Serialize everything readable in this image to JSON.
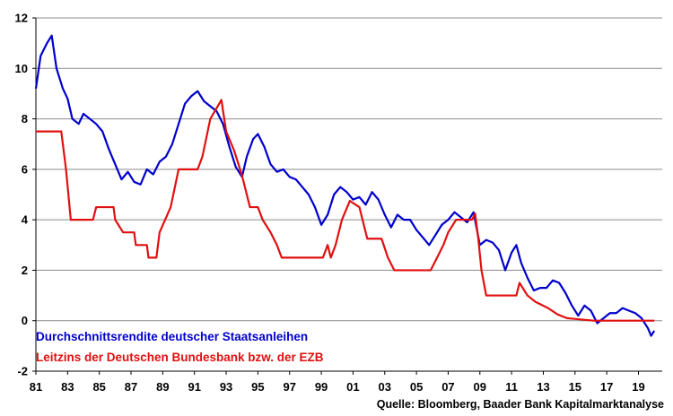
{
  "chart_data": {
    "type": "line",
    "title": "",
    "xlabel": "",
    "ylabel": "",
    "xlim": [
      1981,
      2020.5
    ],
    "ylim": [
      -2,
      12
    ],
    "grid": true,
    "x_ticks": [
      "81",
      "83",
      "85",
      "87",
      "89",
      "91",
      "93",
      "95",
      "97",
      "99",
      "01",
      "03",
      "05",
      "07",
      "09",
      "11",
      "13",
      "15",
      "17",
      "19"
    ],
    "y_ticks": [
      "-2",
      "0",
      "2",
      "4",
      "6",
      "8",
      "10",
      "12"
    ],
    "legend_position": "bottom-left",
    "series": [
      {
        "name": "Durchschnittsrendite deutscher Staatsanleihen",
        "color": "#0000cc",
        "points": [
          [
            1981.0,
            9.2
          ],
          [
            1981.3,
            10.5
          ],
          [
            1981.7,
            11.0
          ],
          [
            1982.0,
            11.3
          ],
          [
            1982.3,
            10.0
          ],
          [
            1982.7,
            9.2
          ],
          [
            1983.0,
            8.8
          ],
          [
            1983.3,
            8.0
          ],
          [
            1983.7,
            7.8
          ],
          [
            1984.0,
            8.2
          ],
          [
            1984.4,
            8.0
          ],
          [
            1984.8,
            7.8
          ],
          [
            1985.2,
            7.5
          ],
          [
            1985.6,
            6.8
          ],
          [
            1986.0,
            6.2
          ],
          [
            1986.4,
            5.6
          ],
          [
            1986.8,
            5.9
          ],
          [
            1987.2,
            5.5
          ],
          [
            1987.6,
            5.4
          ],
          [
            1988.0,
            6.0
          ],
          [
            1988.4,
            5.8
          ],
          [
            1988.8,
            6.3
          ],
          [
            1989.2,
            6.5
          ],
          [
            1989.6,
            7.0
          ],
          [
            1990.0,
            7.8
          ],
          [
            1990.4,
            8.6
          ],
          [
            1990.8,
            8.9
          ],
          [
            1991.2,
            9.1
          ],
          [
            1991.6,
            8.7
          ],
          [
            1992.0,
            8.5
          ],
          [
            1992.4,
            8.3
          ],
          [
            1992.8,
            7.8
          ],
          [
            1993.2,
            6.9
          ],
          [
            1993.6,
            6.1
          ],
          [
            1994.0,
            5.7
          ],
          [
            1994.3,
            6.5
          ],
          [
            1994.7,
            7.2
          ],
          [
            1995.0,
            7.4
          ],
          [
            1995.4,
            6.9
          ],
          [
            1995.8,
            6.2
          ],
          [
            1996.2,
            5.9
          ],
          [
            1996.6,
            6.0
          ],
          [
            1997.0,
            5.7
          ],
          [
            1997.4,
            5.6
          ],
          [
            1997.8,
            5.3
          ],
          [
            1998.2,
            5.0
          ],
          [
            1998.6,
            4.5
          ],
          [
            1999.0,
            3.8
          ],
          [
            1999.4,
            4.2
          ],
          [
            1999.8,
            5.0
          ],
          [
            2000.2,
            5.3
          ],
          [
            2000.6,
            5.1
          ],
          [
            2001.0,
            4.8
          ],
          [
            2001.4,
            4.9
          ],
          [
            2001.8,
            4.6
          ],
          [
            2002.2,
            5.1
          ],
          [
            2002.6,
            4.8
          ],
          [
            2003.0,
            4.2
          ],
          [
            2003.4,
            3.7
          ],
          [
            2003.8,
            4.2
          ],
          [
            2004.2,
            4.0
          ],
          [
            2004.6,
            4.0
          ],
          [
            2005.0,
            3.6
          ],
          [
            2005.4,
            3.3
          ],
          [
            2005.8,
            3.0
          ],
          [
            2006.2,
            3.4
          ],
          [
            2006.6,
            3.8
          ],
          [
            2007.0,
            4.0
          ],
          [
            2007.4,
            4.3
          ],
          [
            2007.8,
            4.1
          ],
          [
            2008.2,
            3.9
          ],
          [
            2008.6,
            4.3
          ],
          [
            2009.0,
            3.0
          ],
          [
            2009.4,
            3.2
          ],
          [
            2009.8,
            3.1
          ],
          [
            2010.2,
            2.8
          ],
          [
            2010.6,
            2.0
          ],
          [
            2011.0,
            2.7
          ],
          [
            2011.3,
            3.0
          ],
          [
            2011.6,
            2.3
          ],
          [
            2012.0,
            1.7
          ],
          [
            2012.4,
            1.2
          ],
          [
            2012.8,
            1.3
          ],
          [
            2013.2,
            1.3
          ],
          [
            2013.6,
            1.6
          ],
          [
            2014.0,
            1.5
          ],
          [
            2014.4,
            1.1
          ],
          [
            2014.8,
            0.6
          ],
          [
            2015.2,
            0.2
          ],
          [
            2015.6,
            0.6
          ],
          [
            2016.0,
            0.4
          ],
          [
            2016.4,
            -0.1
          ],
          [
            2016.8,
            0.1
          ],
          [
            2017.2,
            0.3
          ],
          [
            2017.6,
            0.3
          ],
          [
            2018.0,
            0.5
          ],
          [
            2018.4,
            0.4
          ],
          [
            2018.8,
            0.3
          ],
          [
            2019.2,
            0.1
          ],
          [
            2019.6,
            -0.3
          ],
          [
            2019.8,
            -0.6
          ],
          [
            2020.0,
            -0.4
          ]
        ]
      },
      {
        "name": "Leitzins der Deutschen Bundesbank bzw. der EZB",
        "color": "#e01010",
        "points": [
          [
            1981.0,
            7.5
          ],
          [
            1982.6,
            7.5
          ],
          [
            1982.9,
            6.0
          ],
          [
            1983.2,
            4.0
          ],
          [
            1984.6,
            4.0
          ],
          [
            1984.8,
            4.5
          ],
          [
            1985.9,
            4.5
          ],
          [
            1986.0,
            4.0
          ],
          [
            1986.5,
            3.5
          ],
          [
            1987.2,
            3.5
          ],
          [
            1987.3,
            3.0
          ],
          [
            1988.0,
            3.0
          ],
          [
            1988.1,
            2.5
          ],
          [
            1988.6,
            2.5
          ],
          [
            1988.8,
            3.5
          ],
          [
            1989.5,
            4.5
          ],
          [
            1990.0,
            6.0
          ],
          [
            1991.2,
            6.0
          ],
          [
            1991.5,
            6.5
          ],
          [
            1992.0,
            8.0
          ],
          [
            1992.7,
            8.75
          ],
          [
            1993.0,
            7.5
          ],
          [
            1993.5,
            6.75
          ],
          [
            1994.0,
            5.75
          ],
          [
            1994.5,
            4.5
          ],
          [
            1995.0,
            4.5
          ],
          [
            1995.3,
            4.0
          ],
          [
            1995.8,
            3.5
          ],
          [
            1996.2,
            3.0
          ],
          [
            1996.5,
            2.5
          ],
          [
            1999.1,
            2.5
          ],
          [
            1999.4,
            3.0
          ],
          [
            1999.6,
            2.5
          ],
          [
            1999.9,
            3.0
          ],
          [
            2000.3,
            4.0
          ],
          [
            2000.8,
            4.75
          ],
          [
            2001.4,
            4.5
          ],
          [
            2001.7,
            3.75
          ],
          [
            2001.9,
            3.25
          ],
          [
            2002.8,
            3.25
          ],
          [
            2003.2,
            2.5
          ],
          [
            2003.6,
            2.0
          ],
          [
            2005.9,
            2.0
          ],
          [
            2006.3,
            2.5
          ],
          [
            2006.7,
            3.0
          ],
          [
            2007.0,
            3.5
          ],
          [
            2007.5,
            4.0
          ],
          [
            2008.5,
            4.0
          ],
          [
            2008.7,
            4.25
          ],
          [
            2008.9,
            3.25
          ],
          [
            2009.1,
            2.0
          ],
          [
            2009.4,
            1.0
          ],
          [
            2011.3,
            1.0
          ],
          [
            2011.5,
            1.5
          ],
          [
            2012.0,
            1.0
          ],
          [
            2012.5,
            0.75
          ],
          [
            2013.3,
            0.5
          ],
          [
            2013.9,
            0.25
          ],
          [
            2014.5,
            0.1
          ],
          [
            2016.2,
            0.0
          ],
          [
            2020.0,
            0.0
          ]
        ]
      }
    ],
    "source": "Quelle: Bloomberg, Baader Bank Kapitalmarktanalyse"
  }
}
